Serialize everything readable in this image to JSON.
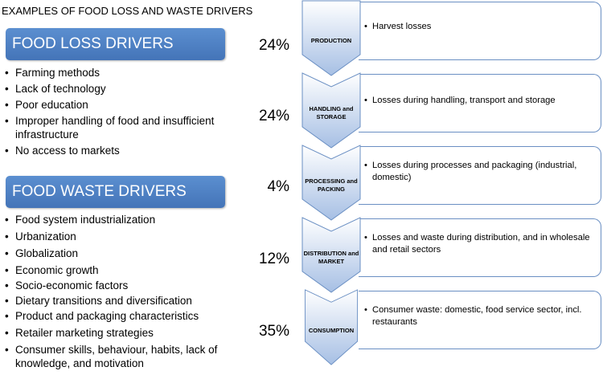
{
  "title": "EXAMPLES OF FOOD LOSS AND WASTE DRIVERS",
  "loss": {
    "header": "FOOD LOSS DRIVERS",
    "items": [
      "Farming methods",
      "Lack of technology",
      "Poor education",
      "Improper handling of food and insufficient infrastructure",
      "No access to markets"
    ]
  },
  "waste": {
    "header": "FOOD WASTE DRIVERS",
    "items": [
      "Food system industrialization",
      "Urbanization",
      "Globalization",
      "Economic growth",
      "Socio-economic factors",
      "Dietary transitions and diversification",
      "Product and packaging characteristics",
      "Retailer marketing strategies",
      "Consumer skills, behaviour, habits, lack of knowledge, and motivation"
    ]
  },
  "stages": [
    {
      "label": "PRODUCTION",
      "percent": "24%",
      "description": "Harvest losses"
    },
    {
      "label": "HANDLING and STORAGE",
      "percent": "24%",
      "description": "Losses during handling, transport and storage"
    },
    {
      "label": "PROCESSING and PACKING",
      "percent": "4%",
      "description": "Losses during processes and packaging (industrial, domestic)"
    },
    {
      "label": "DISTRIBUTION and MARKET",
      "percent": "12%",
      "description": "Losses and waste during distribution, and in wholesale and retail sectors"
    },
    {
      "label": "CONSUMPTION",
      "percent": "35%",
      "description": "Consumer waste: domestic, food service sector, incl. restaurants"
    }
  ],
  "colors": {
    "header_fill": "#4f81bd",
    "chevron_top": "#ffffff",
    "chevron_bottom": "#a6bfe4",
    "box_border": "#6a8fc3"
  }
}
